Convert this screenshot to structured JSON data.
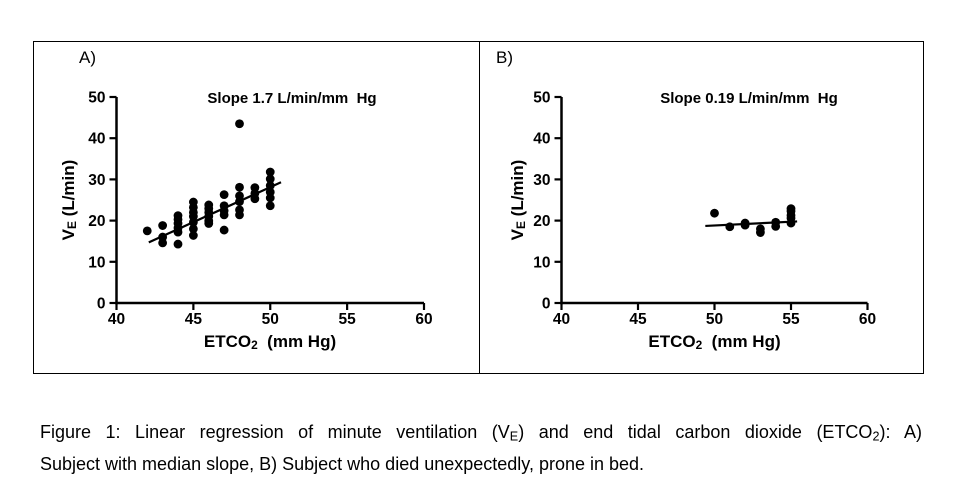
{
  "colors": {
    "foreground": "#000000",
    "background": "#ffffff"
  },
  "caption": {
    "lines": [
      [
        {
          "text": "Figure 1: Linear regression of minute ventilation (V"
        },
        {
          "text": "E",
          "sub": true
        },
        {
          "text": ") and end tidal carbon dioxide (ETCO"
        },
        {
          "text": "2",
          "sub": true
        },
        {
          "text": "): A)"
        }
      ],
      [
        {
          "text": "Subject with median slope, B) Subject who died unexpectedly, prone in bed."
        }
      ]
    ]
  },
  "chart_data": [
    {
      "type": "scatter",
      "panel_label": "A)",
      "annotation": "Slope 1.7 L/min/mm  Hg",
      "slope": "1.7 L/min/mm Hg",
      "xlabel_segments": [
        {
          "text": "ETCO"
        },
        {
          "text": "2",
          "sub": true
        },
        {
          "text": "  (mm Hg)"
        }
      ],
      "ylabel_segments": [
        {
          "text": "V"
        },
        {
          "text": "E",
          "sub": true
        },
        {
          "text": " (L/min)"
        }
      ],
      "xlim": [
        40,
        60
      ],
      "ylim": [
        0,
        50
      ],
      "xticks": [
        40,
        45,
        50,
        55,
        60
      ],
      "yticks": [
        0,
        10,
        20,
        30,
        40,
        50
      ],
      "grid": false,
      "marker_color": "#000000",
      "points": [
        [
          42,
          17.5
        ],
        [
          43,
          18.8
        ],
        [
          43,
          16.0
        ],
        [
          43,
          14.6
        ],
        [
          44,
          21.2
        ],
        [
          44,
          20.3
        ],
        [
          44,
          19.3
        ],
        [
          44,
          18.2
        ],
        [
          44,
          17.2
        ],
        [
          44,
          14.3
        ],
        [
          45,
          24.5
        ],
        [
          45,
          23.2
        ],
        [
          45,
          22.0
        ],
        [
          45,
          21.0
        ],
        [
          45,
          19.6
        ],
        [
          45,
          18.0
        ],
        [
          45,
          16.4
        ],
        [
          46,
          23.8
        ],
        [
          46,
          22.9
        ],
        [
          46,
          22.0
        ],
        [
          46,
          21.0
        ],
        [
          46,
          19.9
        ],
        [
          46,
          19.3
        ],
        [
          47,
          26.3
        ],
        [
          47,
          23.6
        ],
        [
          47,
          22.4
        ],
        [
          47,
          21.4
        ],
        [
          47,
          17.7
        ],
        [
          48,
          43.5
        ],
        [
          48,
          28.1
        ],
        [
          48,
          26.0
        ],
        [
          48,
          24.6
        ],
        [
          48,
          22.6
        ],
        [
          48,
          21.4
        ],
        [
          49,
          28.0
        ],
        [
          49,
          26.6
        ],
        [
          49,
          25.3
        ],
        [
          50,
          31.8
        ],
        [
          50,
          30.1
        ],
        [
          50,
          28.5
        ],
        [
          50,
          26.9
        ],
        [
          50,
          25.5
        ],
        [
          50,
          23.6
        ]
      ],
      "regression_line": {
        "x1": 42.1,
        "y1": 14.7,
        "x2": 50.7,
        "y2": 29.3
      }
    },
    {
      "type": "scatter",
      "panel_label": "B)",
      "annotation": "Slope 0.19 L/min/mm  Hg",
      "slope": "0.19 L/min/mm Hg",
      "xlabel_segments": [
        {
          "text": "ETCO"
        },
        {
          "text": "2",
          "sub": true
        },
        {
          "text": "  (mm Hg)"
        }
      ],
      "ylabel_segments": [
        {
          "text": "V"
        },
        {
          "text": "E",
          "sub": true
        },
        {
          "text": " (L/min)"
        }
      ],
      "xlim": [
        40,
        60
      ],
      "ylim": [
        0,
        50
      ],
      "xticks": [
        40,
        45,
        50,
        55,
        60
      ],
      "yticks": [
        0,
        10,
        20,
        30,
        40,
        50
      ],
      "grid": false,
      "marker_color": "#000000",
      "points": [
        [
          50,
          21.8
        ],
        [
          51,
          18.5
        ],
        [
          52,
          19.4
        ],
        [
          52,
          18.9
        ],
        [
          53,
          18.0
        ],
        [
          53,
          17.1
        ],
        [
          54,
          19.6
        ],
        [
          54,
          18.6
        ],
        [
          55,
          22.9
        ],
        [
          55,
          22.3
        ],
        [
          55,
          21.3
        ],
        [
          55,
          20.6
        ],
        [
          55,
          19.4
        ]
      ],
      "regression_line": {
        "x1": 49.4,
        "y1": 18.7,
        "x2": 55.4,
        "y2": 19.8
      }
    }
  ]
}
